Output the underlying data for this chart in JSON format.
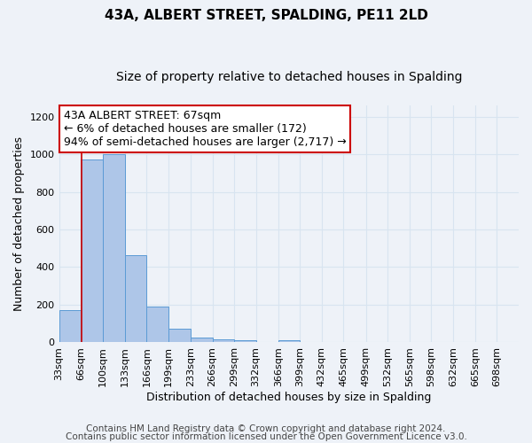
{
  "title": "43A, ALBERT STREET, SPALDING, PE11 2LD",
  "subtitle": "Size of property relative to detached houses in Spalding",
  "xlabel": "Distribution of detached houses by size in Spalding",
  "ylabel": "Number of detached properties",
  "bin_labels": [
    "33sqm",
    "66sqm",
    "100sqm",
    "133sqm",
    "166sqm",
    "199sqm",
    "233sqm",
    "266sqm",
    "299sqm",
    "332sqm",
    "366sqm",
    "399sqm",
    "432sqm",
    "465sqm",
    "499sqm",
    "532sqm",
    "565sqm",
    "598sqm",
    "632sqm",
    "665sqm",
    "698sqm"
  ],
  "bar_heights": [
    170,
    970,
    1000,
    465,
    190,
    75,
    25,
    15,
    10,
    0,
    10,
    0,
    0,
    0,
    0,
    0,
    0,
    0,
    0,
    0,
    0
  ],
  "bar_color": "#aec6e8",
  "bar_edge_color": "#5b9bd5",
  "property_line_x": 67,
  "property_line_color": "#cc0000",
  "annotation_line1": "43A ALBERT STREET: 67sqm",
  "annotation_line2": "← 6% of detached houses are smaller (172)",
  "annotation_line3": "94% of semi-detached houses are larger (2,717) →",
  "annotation_box_color": "#ffffff",
  "annotation_box_edge_color": "#cc0000",
  "ylim": [
    0,
    1260
  ],
  "yticks": [
    0,
    200,
    400,
    600,
    800,
    1000,
    1200
  ],
  "footer_line1": "Contains HM Land Registry data © Crown copyright and database right 2024.",
  "footer_line2": "Contains public sector information licensed under the Open Government Licence v3.0.",
  "background_color": "#eef2f8",
  "grid_color": "#d8e4f0",
  "title_fontsize": 11,
  "subtitle_fontsize": 10,
  "axis_label_fontsize": 9,
  "tick_fontsize": 8,
  "annotation_fontsize": 9,
  "footer_fontsize": 7.5
}
